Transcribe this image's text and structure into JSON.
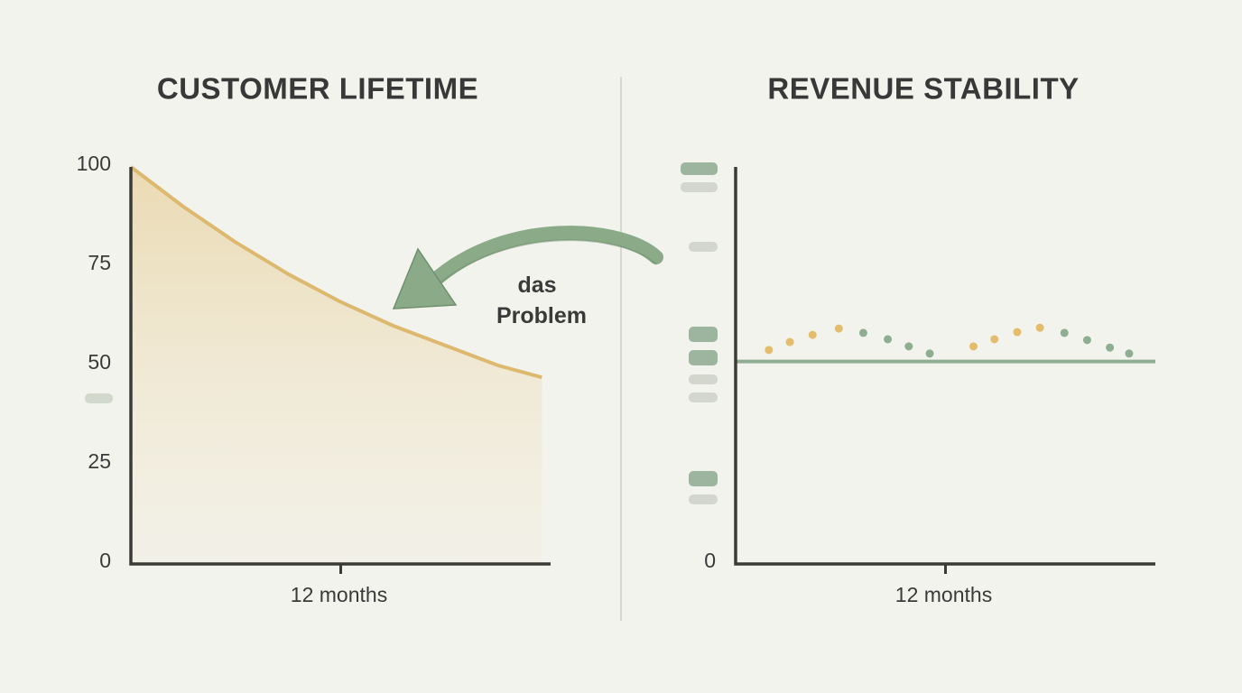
{
  "chart_data": [
    {
      "type": "area",
      "title": "CUSTOMER LIFETIME",
      "x": [
        0,
        3,
        6,
        9,
        12,
        15,
        18,
        21,
        23.5
      ],
      "values": [
        100,
        90,
        81,
        73,
        66,
        60,
        55,
        50,
        47
      ],
      "color": "#dcb96e",
      "xlim": [
        0,
        24
      ],
      "xticks": [
        {
          "value": 12,
          "label": "12 months"
        }
      ],
      "ylim": [
        0,
        100
      ],
      "yticks": [
        0,
        25,
        50,
        75,
        100
      ],
      "annotation": "das Problem"
    },
    {
      "type": "scatter",
      "title": "REVENUE STABILITY",
      "series": [
        {
          "color": "#e3bc6c",
          "x": [
            1.9,
            3.1,
            4.4,
            5.9,
            13.6,
            14.8,
            16.1,
            17.4
          ],
          "values": [
            53.9,
            55.9,
            57.7,
            59.3,
            54.8,
            56.6,
            58.4,
            59.5
          ]
        },
        {
          "color": "#8fae91",
          "x": [
            7.3,
            8.7,
            9.9,
            11.1,
            18.8,
            20.1,
            21.4,
            22.5
          ],
          "values": [
            58.2,
            56.6,
            54.8,
            53.0,
            58.2,
            56.4,
            54.5,
            53.0
          ]
        }
      ],
      "hline": {
        "value": 51,
        "color": "#8fae91"
      },
      "xlim": [
        0,
        24
      ],
      "xticks": [
        {
          "value": 12,
          "label": "12 months"
        }
      ],
      "ylim": [
        0,
        100
      ],
      "yticks": [
        0
      ]
    }
  ]
}
